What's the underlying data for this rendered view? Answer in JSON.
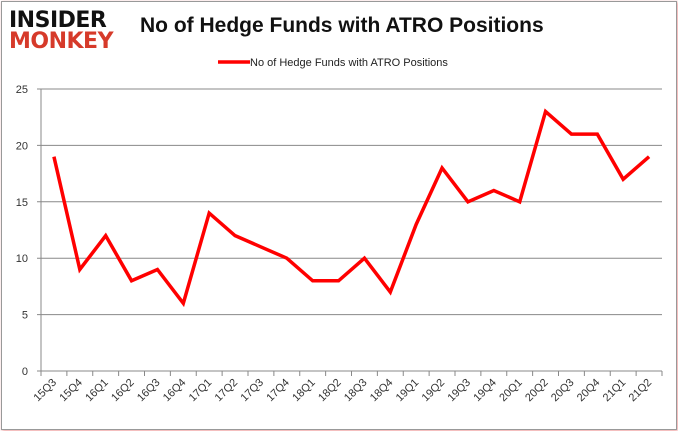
{
  "logo": {
    "line1": "INSIDER",
    "line2": "MONKEY"
  },
  "chart_data": {
    "type": "line",
    "title": "No of Hedge Funds with ATRO Positions",
    "xlabel": "",
    "ylabel": "",
    "ylim": [
      0,
      25
    ],
    "yticks": [
      0,
      5,
      10,
      15,
      20,
      25
    ],
    "grid": true,
    "legend": "top-center",
    "categories": [
      "15Q3",
      "15Q4",
      "16Q1",
      "16Q2",
      "16Q3",
      "16Q4",
      "17Q1",
      "17Q2",
      "17Q3",
      "17Q4",
      "18Q1",
      "18Q2",
      "18Q3",
      "18Q4",
      "19Q1",
      "19Q2",
      "19Q3",
      "19Q4",
      "20Q1",
      "20Q2",
      "20Q3",
      "20Q4",
      "21Q1",
      "21Q2"
    ],
    "series": [
      {
        "name": "No of Hedge Funds with ATRO Positions",
        "color": "#ff0000",
        "values": [
          19,
          9,
          12,
          8,
          9,
          6,
          14,
          12,
          11,
          10,
          8,
          8,
          10,
          7,
          13,
          18,
          15,
          16,
          15,
          23,
          21,
          21,
          17,
          19
        ]
      }
    ]
  }
}
